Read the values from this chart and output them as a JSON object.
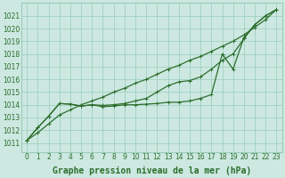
{
  "xlabel": "Graphe pression niveau de la mer (hPa)",
  "bg_color": "#cce8e0",
  "grid_color": "#99ccbb",
  "line_color": "#2d6e2d",
  "x_ticks": [
    0,
    1,
    2,
    3,
    4,
    5,
    6,
    7,
    8,
    9,
    10,
    11,
    12,
    13,
    14,
    15,
    16,
    17,
    18,
    19,
    20,
    21,
    22,
    23
  ],
  "y_ticks": [
    1011,
    1012,
    1013,
    1014,
    1015,
    1016,
    1017,
    1018,
    1019,
    1020,
    1021
  ],
  "ylim": [
    1010.3,
    1022.0
  ],
  "xlim": [
    -0.5,
    23.5
  ],
  "line_top": [
    1011.2,
    1011.8,
    1012.5,
    1013.2,
    1013.6,
    1014.0,
    1014.3,
    1014.6,
    1015.0,
    1015.3,
    1015.7,
    1016.0,
    1016.4,
    1016.8,
    1017.1,
    1017.5,
    1017.8,
    1018.2,
    1018.6,
    1019.0,
    1019.5,
    1020.1,
    1020.7,
    1021.5
  ],
  "line_mid": [
    1011.2,
    1012.2,
    1013.1,
    1014.1,
    1014.05,
    1013.9,
    1014.0,
    1013.95,
    1014.0,
    1014.1,
    1014.3,
    1014.5,
    1015.0,
    1015.5,
    1015.8,
    1015.9,
    1016.2,
    1016.8,
    1017.5,
    1018.0,
    1019.2,
    1020.3,
    1021.0,
    1021.5
  ],
  "line_bot": [
    1011.2,
    1012.2,
    1013.1,
    1014.1,
    1014.05,
    1013.9,
    1014.0,
    1013.85,
    1013.9,
    1014.0,
    1014.0,
    1014.05,
    1014.1,
    1014.2,
    1014.2,
    1014.3,
    1014.5,
    1014.8,
    1018.0,
    1016.8,
    1019.3,
    1020.3,
    1021.0,
    1021.5
  ],
  "marker": "+",
  "marker_size": 3,
  "linewidth": 0.9,
  "xlabel_fontsize": 7,
  "tick_fontsize": 5.5
}
